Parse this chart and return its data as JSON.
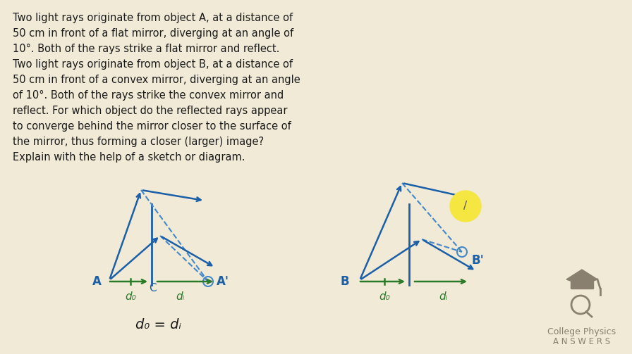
{
  "bg_color": "#f0ead6",
  "text_color": "#1a1a1a",
  "blue_color": "#1a5fa8",
  "green_color": "#2a7a2a",
  "dashed_blue": "#4488cc",
  "gray_color": "#8a8070",
  "yellow_color": "#f5e642",
  "title_text": [
    "Two light rays originate from object A, at a distance of",
    "50 cm in front of a flat mirror, diverging at an angle of",
    "10°. Both of the rays strike a flat mirror and reflect.",
    "Two light rays originate from object B, at a distance of",
    "50 cm in front of a convex mirror, diverging at an angle",
    "of 10°. Both of the rays strike the convex mirror and",
    "reflect. For which object do the reflected rays appear",
    "to converge behind the mirror closer to the surface of",
    "the mirror, thus forming a closer (larger) image?",
    "Explain with the help of a sketch or diagram."
  ],
  "cpa_line1": "College Physics",
  "cpa_line2": "A N S W E R S",
  "eq_text": "d₀ = dᵢ",
  "label_A": "A",
  "label_C": "C",
  "label_Aprime": "A'",
  "label_do1": "d₀",
  "label_di1": "dᵢ",
  "label_B": "B",
  "label_Bprime": "B'",
  "label_do2": "d₀",
  "label_di2": "dᵢ"
}
